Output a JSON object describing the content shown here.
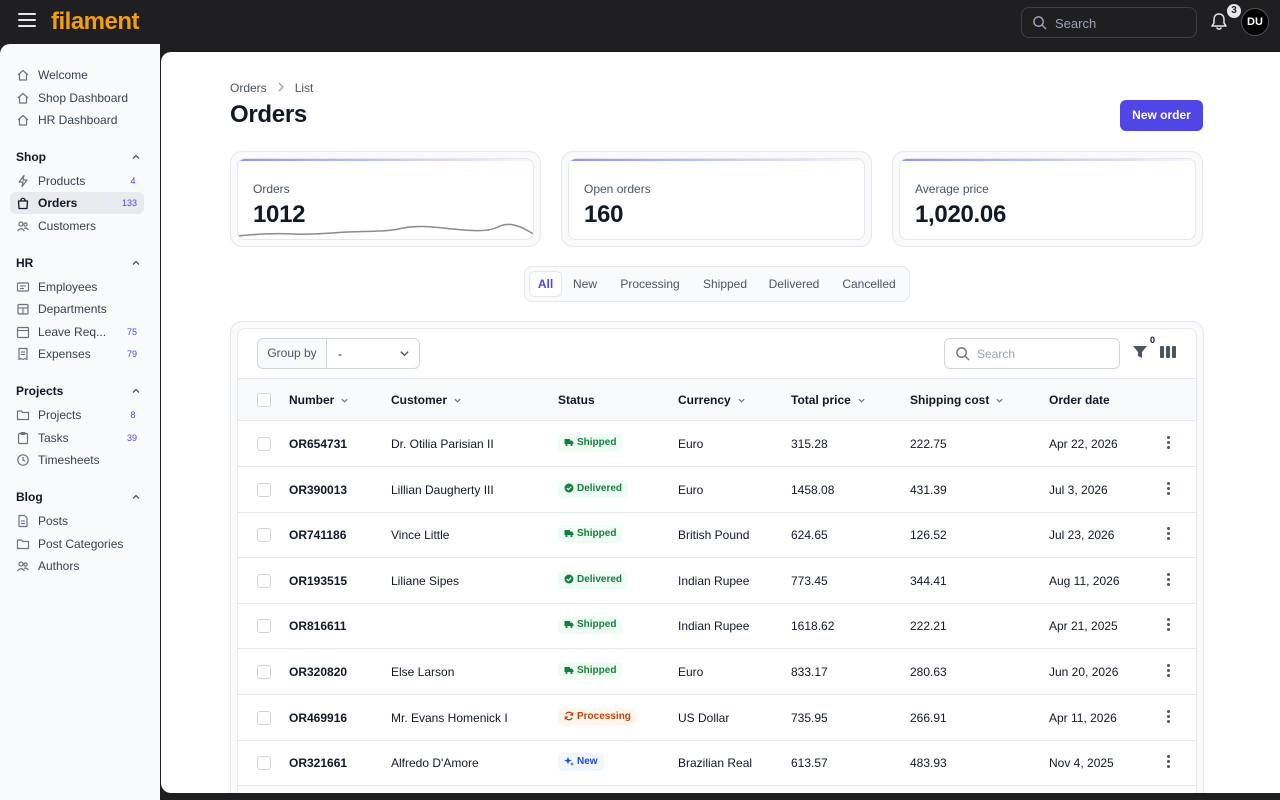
{
  "app": {
    "logo": "filament"
  },
  "topbar": {
    "search_placeholder": "Search",
    "notification_count": "3",
    "avatar_initials": "DU"
  },
  "sidebar": {
    "items_top": [
      {
        "label": "Welcome",
        "icon": "home-icon"
      },
      {
        "label": "Shop Dashboard",
        "icon": "home-icon"
      },
      {
        "label": "HR Dashboard",
        "icon": "home-icon"
      }
    ],
    "groups": [
      {
        "label": "Shop",
        "items": [
          {
            "label": "Products",
            "badge": "4",
            "icon": "bolt-icon"
          },
          {
            "label": "Orders",
            "badge": "133",
            "icon": "shopping-bag-icon",
            "active": true
          },
          {
            "label": "Customers",
            "badge": "",
            "icon": "users-icon"
          }
        ]
      },
      {
        "label": "HR",
        "items": [
          {
            "label": "Employees",
            "badge": "",
            "icon": "id-card-icon"
          },
          {
            "label": "Departments",
            "badge": "",
            "icon": "building-icon"
          },
          {
            "label": "Leave Req...",
            "badge": "75",
            "icon": "calendar-icon"
          },
          {
            "label": "Expenses",
            "badge": "79",
            "icon": "receipt-icon"
          }
        ]
      },
      {
        "label": "Projects",
        "items": [
          {
            "label": "Projects",
            "badge": "8",
            "icon": "folder-icon"
          },
          {
            "label": "Tasks",
            "badge": "39",
            "icon": "clipboard-icon"
          },
          {
            "label": "Timesheets",
            "badge": "",
            "icon": "clock-icon"
          }
        ]
      },
      {
        "label": "Blog",
        "items": [
          {
            "label": "Posts",
            "badge": "",
            "icon": "document-icon"
          },
          {
            "label": "Post Categories",
            "badge": "",
            "icon": "folder-icon"
          },
          {
            "label": "Authors",
            "badge": "",
            "icon": "users-icon"
          }
        ]
      }
    ]
  },
  "breadcrumb": {
    "parent": "Orders",
    "current": "List"
  },
  "page": {
    "title": "Orders",
    "new_button": "New order"
  },
  "stats": [
    {
      "label": "Orders",
      "value": "1012"
    },
    {
      "label": "Open orders",
      "value": "160"
    },
    {
      "label": "Average price",
      "value": "1,020.06"
    }
  ],
  "tabs": [
    "All",
    "New",
    "Processing",
    "Shipped",
    "Delivered",
    "Cancelled"
  ],
  "table": {
    "group_by_label": "Group by",
    "group_by_value": "-",
    "search_placeholder": "Search",
    "filter_count": "0",
    "columns": [
      "Number",
      "Customer",
      "Status",
      "Currency",
      "Total price",
      "Shipping cost",
      "Order date"
    ],
    "rows": [
      {
        "number": "OR654731",
        "customer": "Dr. Otilia Parisian II",
        "status": "Shipped",
        "currency": "Euro",
        "total": "315.28",
        "shipping": "222.75",
        "date": "Apr 22, 2026"
      },
      {
        "number": "OR390013",
        "customer": "Lillian Daugherty III",
        "status": "Delivered",
        "currency": "Euro",
        "total": "1458.08",
        "shipping": "431.39",
        "date": "Jul 3, 2026"
      },
      {
        "number": "OR741186",
        "customer": "Vince Little",
        "status": "Shipped",
        "currency": "British Pound",
        "total": "624.65",
        "shipping": "126.52",
        "date": "Jul 23, 2026"
      },
      {
        "number": "OR193515",
        "customer": "Liliane Sipes",
        "status": "Delivered",
        "currency": "Indian Rupee",
        "total": "773.45",
        "shipping": "344.41",
        "date": "Aug 11, 2026"
      },
      {
        "number": "OR816611",
        "customer": "",
        "status": "Shipped",
        "currency": "Indian Rupee",
        "total": "1618.62",
        "shipping": "222.21",
        "date": "Apr 21, 2025"
      },
      {
        "number": "OR320820",
        "customer": "Else Larson",
        "status": "Shipped",
        "currency": "Euro",
        "total": "833.17",
        "shipping": "280.63",
        "date": "Jun 20, 2026"
      },
      {
        "number": "OR469916",
        "customer": "Mr. Evans Homenick I",
        "status": "Processing",
        "currency": "US Dollar",
        "total": "735.95",
        "shipping": "266.91",
        "date": "Apr 11, 2026"
      },
      {
        "number": "OR321661",
        "customer": "Alfredo D'Amore",
        "status": "New",
        "currency": "Brazilian Real",
        "total": "613.57",
        "shipping": "483.93",
        "date": "Nov 4, 2025"
      }
    ]
  },
  "colors": {
    "accent": "#4f46e5",
    "brand": "#f59e0b",
    "shipped": "#15803d",
    "processing": "#c2410c",
    "new": "#1d4ed8"
  }
}
